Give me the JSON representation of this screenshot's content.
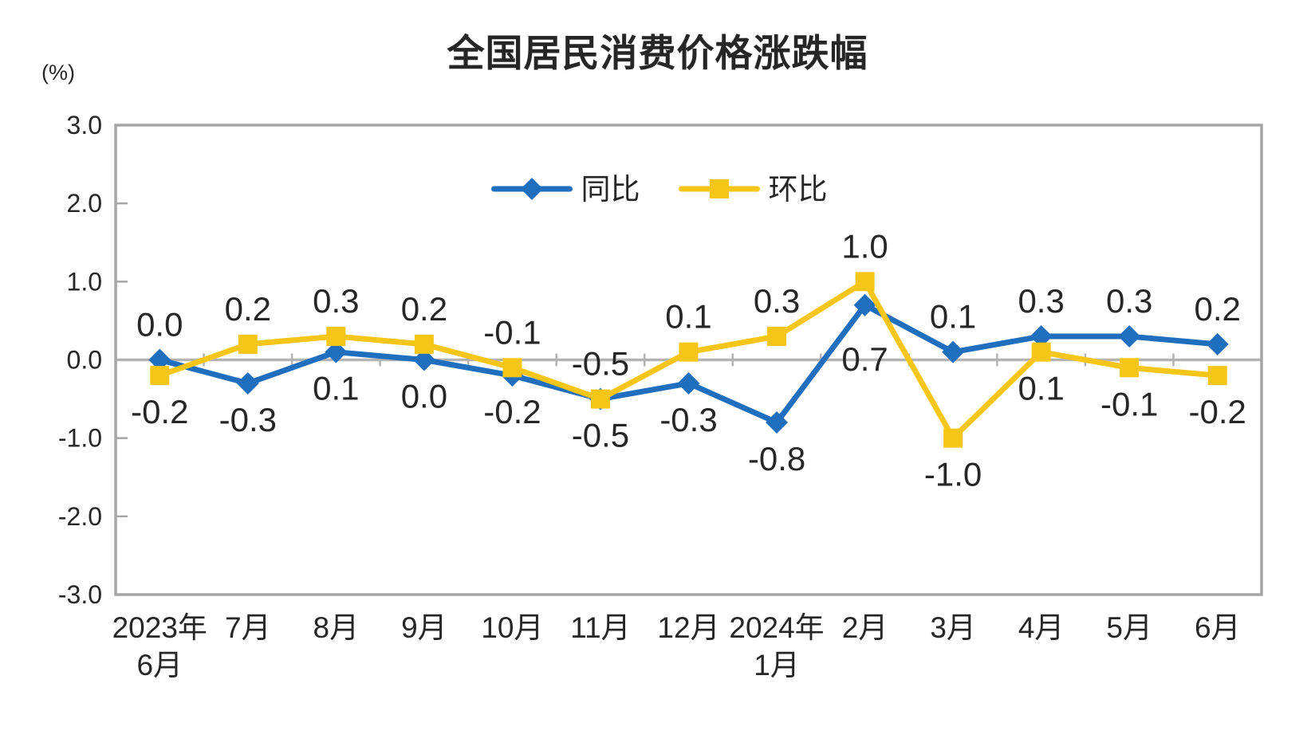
{
  "chart_data": {
    "type": "line",
    "title": "全国居民消费价格涨跌幅",
    "ylabel": "(%)",
    "xlabel": "",
    "ylim": [
      -3.0,
      3.0
    ],
    "y_ticks": [
      3.0,
      2.0,
      1.0,
      0.0,
      -1.0,
      -2.0,
      -3.0
    ],
    "y_tick_labels": [
      "3.0",
      "2.0",
      "1.0",
      "0.0",
      "-1.0",
      "-2.0",
      "-3.0"
    ],
    "grid": false,
    "legend_position": "top-center-inside",
    "categories": [
      "2023年6月",
      "7月",
      "8月",
      "9月",
      "10月",
      "11月",
      "12月",
      "2024年1月",
      "2月",
      "3月",
      "4月",
      "5月",
      "6月"
    ],
    "x_tick_lines": [
      [
        "2023年",
        "6月"
      ],
      [
        "7月"
      ],
      [
        "8月"
      ],
      [
        "9月"
      ],
      [
        "10月"
      ],
      [
        "11月"
      ],
      [
        "12月"
      ],
      [
        "2024年",
        "1月"
      ],
      [
        "2月"
      ],
      [
        "3月"
      ],
      [
        "4月"
      ],
      [
        "5月"
      ],
      [
        "6月"
      ]
    ],
    "series": [
      {
        "key": "yoy",
        "name": "同比",
        "color": "#1F6FBE",
        "marker": "diamond",
        "values": [
          0.0,
          -0.3,
          0.1,
          0.0,
          -0.2,
          -0.5,
          -0.3,
          -0.8,
          0.7,
          0.1,
          0.3,
          0.3,
          0.2
        ],
        "labels": [
          "0.0",
          "-0.3",
          "0.1",
          "0.0",
          "-0.2",
          "-0.5",
          "-0.3",
          "-0.8",
          "0.7",
          "0.1",
          "0.3",
          "0.3",
          "0.2"
        ],
        "label_side": [
          "above",
          "below",
          "below",
          "below",
          "below",
          "below",
          "below",
          "below",
          "below",
          "above",
          "above",
          "above",
          "above"
        ],
        "label_dy": [
          0,
          0,
          0,
          0,
          0,
          0,
          0,
          0,
          22,
          0,
          0,
          0,
          0
        ]
      },
      {
        "key": "mom",
        "name": "环比",
        "color": "#F5C518",
        "marker": "square",
        "values": [
          -0.2,
          0.2,
          0.3,
          0.2,
          -0.1,
          -0.5,
          0.1,
          0.3,
          1.0,
          -1.0,
          0.1,
          -0.1,
          -0.2
        ],
        "labels": [
          "-0.2",
          "0.2",
          "0.3",
          "0.2",
          "-0.1",
          "-0.5",
          "0.1",
          "0.3",
          "1.0",
          "-1.0",
          "0.1",
          "-0.1",
          "-0.2"
        ],
        "label_side": [
          "below",
          "above",
          "above",
          "above",
          "above",
          "above",
          "above",
          "above",
          "above",
          "below",
          "below",
          "below",
          "below"
        ],
        "label_dy": [
          0,
          0,
          0,
          0,
          0,
          0,
          0,
          0,
          0,
          0,
          0,
          0,
          0
        ]
      }
    ],
    "colors": {
      "axis_border": "#A6A6A6",
      "zero_line": "#B3B3B3",
      "text": "#262626"
    }
  }
}
